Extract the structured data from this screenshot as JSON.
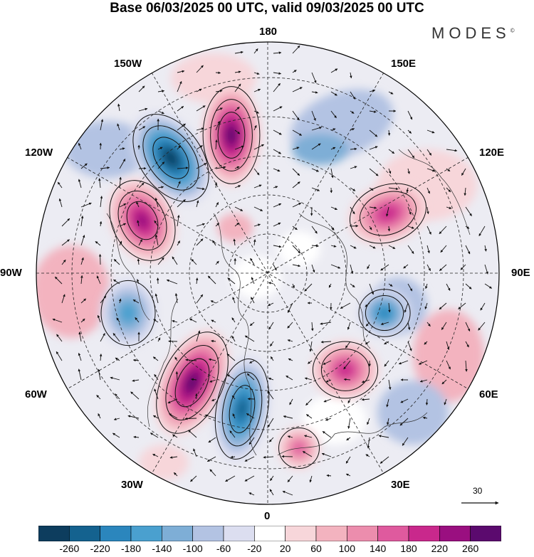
{
  "title": "Base 06/03/2025 00 UTC, valid 09/03/2025 00 UTC",
  "brand": "MODES",
  "brand_mark": "©",
  "longitude_labels": {
    "top": "180",
    "e150": "150E",
    "w150": "150W",
    "e120": "120E",
    "w120": "120W",
    "e90": "90E",
    "w90": "90W",
    "e60": "60E",
    "w60": "60W",
    "e30": "30E",
    "w30": "30W",
    "bottom": "0"
  },
  "reference_vector": {
    "label": "30",
    "icon": "arrow-right-icon"
  },
  "colorbar": {
    "ticks": [
      "-260",
      "-220",
      "-180",
      "-140",
      "-100",
      "-60",
      "-20",
      "20",
      "60",
      "100",
      "140",
      "180",
      "220",
      "260"
    ],
    "colors": [
      "#0d3d5e",
      "#14628f",
      "#2b86bd",
      "#4aa0cf",
      "#7eaed6",
      "#b3c3e3",
      "#dcdef0",
      "#ffffff",
      "#f7d6da",
      "#f3b3bf",
      "#ec8dad",
      "#df5a9e",
      "#c9288c",
      "#9a0f80",
      "#5b0a6e"
    ]
  },
  "anomaly_centers": [
    {
      "sign": "negative",
      "level": -220,
      "location": "near 150W-120W"
    },
    {
      "sign": "positive",
      "level": 220,
      "location": "near 160W-180"
    },
    {
      "sign": "positive",
      "level": 180,
      "location": "near 120W-100W"
    },
    {
      "sign": "positive",
      "level": 140,
      "location": "near 120E-100E"
    },
    {
      "sign": "negative",
      "level": -140,
      "location": "near 90E"
    },
    {
      "sign": "positive",
      "level": 140,
      "location": "near 45E"
    },
    {
      "sign": "positive",
      "level": 220,
      "location": "near 40W"
    },
    {
      "sign": "negative",
      "level": -180,
      "location": "near 20W"
    },
    {
      "sign": "positive",
      "level": 100,
      "location": "near 20E"
    },
    {
      "sign": "negative",
      "level": -100,
      "location": "near 70W"
    }
  ]
}
